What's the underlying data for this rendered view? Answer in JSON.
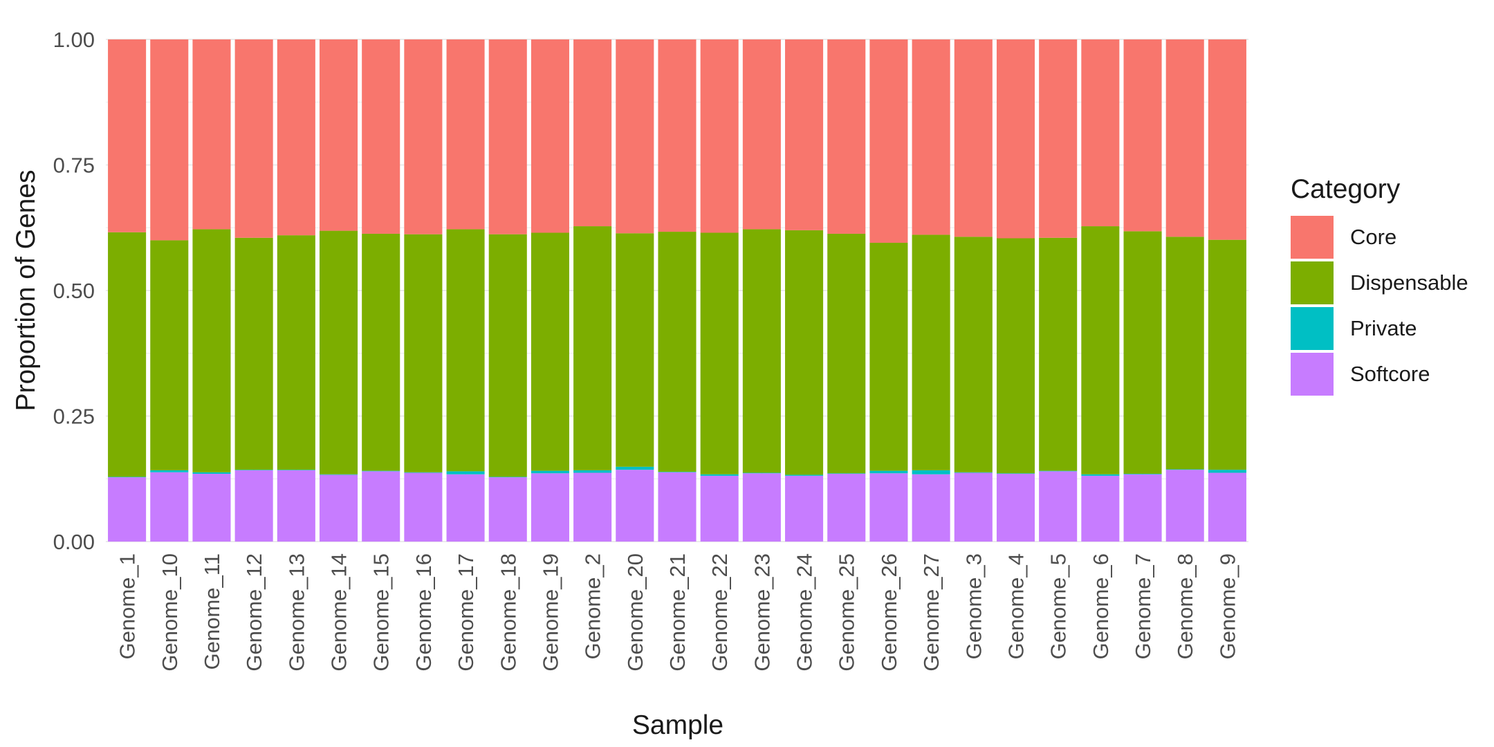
{
  "chart_data": {
    "type": "bar",
    "stacked": true,
    "title": "",
    "xlabel": "Sample",
    "ylabel": "Proportion of Genes",
    "ylim": [
      0,
      1
    ],
    "yticks": [
      "0.00",
      "0.25",
      "0.50",
      "0.75",
      "1.00"
    ],
    "grid": true,
    "legend": {
      "title": "Category",
      "position": "right"
    },
    "categories": [
      "Genome_1",
      "Genome_10",
      "Genome_11",
      "Genome_12",
      "Genome_13",
      "Genome_14",
      "Genome_15",
      "Genome_16",
      "Genome_17",
      "Genome_18",
      "Genome_19",
      "Genome_2",
      "Genome_20",
      "Genome_21",
      "Genome_22",
      "Genome_23",
      "Genome_24",
      "Genome_25",
      "Genome_26",
      "Genome_27",
      "Genome_3",
      "Genome_4",
      "Genome_5",
      "Genome_6",
      "Genome_7",
      "Genome_8",
      "Genome_9"
    ],
    "series": [
      {
        "name": "Softcore",
        "color": "#C77CFF",
        "values": [
          0.128,
          0.138,
          0.135,
          0.142,
          0.142,
          0.133,
          0.14,
          0.137,
          0.134,
          0.128,
          0.136,
          0.137,
          0.143,
          0.138,
          0.131,
          0.136,
          0.131,
          0.135,
          0.136,
          0.134,
          0.137,
          0.135,
          0.14,
          0.131,
          0.134,
          0.143,
          0.137
        ]
      },
      {
        "name": "Private",
        "color": "#00BFC4",
        "values": [
          0.001,
          0.004,
          0.003,
          0.001,
          0.001,
          0.001,
          0.001,
          0.001,
          0.006,
          0.001,
          0.005,
          0.005,
          0.006,
          0.001,
          0.003,
          0.001,
          0.002,
          0.001,
          0.005,
          0.008,
          0.001,
          0.001,
          0.001,
          0.003,
          0.001,
          0.001,
          0.006
        ]
      },
      {
        "name": "Dispensable",
        "color": "#7CAE00",
        "values": [
          0.487,
          0.458,
          0.484,
          0.462,
          0.467,
          0.485,
          0.472,
          0.474,
          0.482,
          0.483,
          0.474,
          0.486,
          0.465,
          0.478,
          0.481,
          0.485,
          0.487,
          0.477,
          0.454,
          0.469,
          0.469,
          0.468,
          0.464,
          0.494,
          0.483,
          0.463,
          0.458
        ]
      },
      {
        "name": "Core",
        "color": "#F8766D",
        "values": [
          0.384,
          0.4,
          0.378,
          0.395,
          0.39,
          0.381,
          0.387,
          0.388,
          0.378,
          0.388,
          0.385,
          0.372,
          0.386,
          0.383,
          0.385,
          0.378,
          0.38,
          0.387,
          0.405,
          0.389,
          0.393,
          0.396,
          0.395,
          0.372,
          0.382,
          0.393,
          0.399
        ]
      }
    ],
    "legend_order": [
      "Core",
      "Dispensable",
      "Private",
      "Softcore"
    ]
  }
}
